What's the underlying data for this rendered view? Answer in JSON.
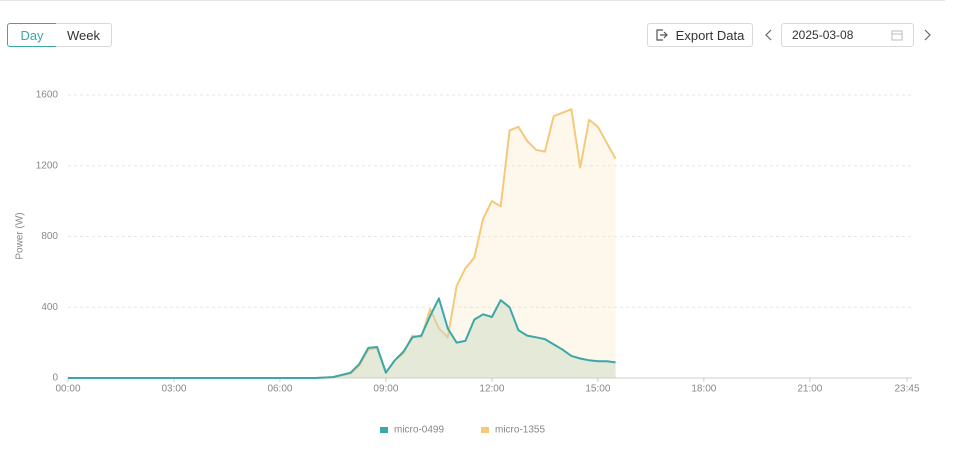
{
  "toolbar": {
    "day": "Day",
    "week": "Week",
    "export": "Export Data",
    "date": "2025-03-08"
  },
  "chart_data": {
    "type": "area",
    "y_label": "Power (W)",
    "x": [
      0,
      420,
      450,
      480,
      495,
      510,
      525,
      540,
      555,
      570,
      585,
      600,
      615,
      630,
      645,
      660,
      675,
      690,
      705,
      720,
      735,
      750,
      765,
      780,
      795,
      810,
      825,
      840,
      855,
      870,
      885,
      900,
      915,
      930
    ],
    "series": [
      {
        "name": "micro-0499",
        "color": "#3aa8a8",
        "values": [
          0,
          0,
          5,
          30,
          80,
          170,
          175,
          30,
          100,
          150,
          230,
          240,
          350,
          450,
          280,
          200,
          210,
          330,
          360,
          345,
          440,
          400,
          270,
          240,
          230,
          220,
          190,
          160,
          125,
          110,
          100,
          95,
          95,
          88
        ]
      },
      {
        "name": "micro-1355",
        "color": "#f5c97a",
        "values": [
          0,
          0,
          5,
          25,
          70,
          160,
          170,
          30,
          100,
          140,
          240,
          230,
          390,
          280,
          230,
          520,
          620,
          680,
          900,
          1000,
          970,
          1400,
          1420,
          1340,
          1290,
          1280,
          1480,
          1500,
          1520,
          1190,
          1460,
          1420,
          1330,
          1240
        ]
      }
    ],
    "xlim": [
      0,
      1425
    ],
    "xticks": [
      {
        "value": 0,
        "label": "00:00"
      },
      {
        "value": 180,
        "label": "03:00"
      },
      {
        "value": 360,
        "label": "06:00"
      },
      {
        "value": 540,
        "label": "09:00"
      },
      {
        "value": 720,
        "label": "12:00"
      },
      {
        "value": 900,
        "label": "15:00"
      },
      {
        "value": 1080,
        "label": "18:00"
      },
      {
        "value": 1260,
        "label": "21:00"
      },
      {
        "value": 1425,
        "label": "23:45"
      }
    ],
    "ylim": [
      0,
      1600
    ],
    "yticks": [
      0,
      400,
      800,
      1200,
      1600
    ],
    "grid": true
  }
}
